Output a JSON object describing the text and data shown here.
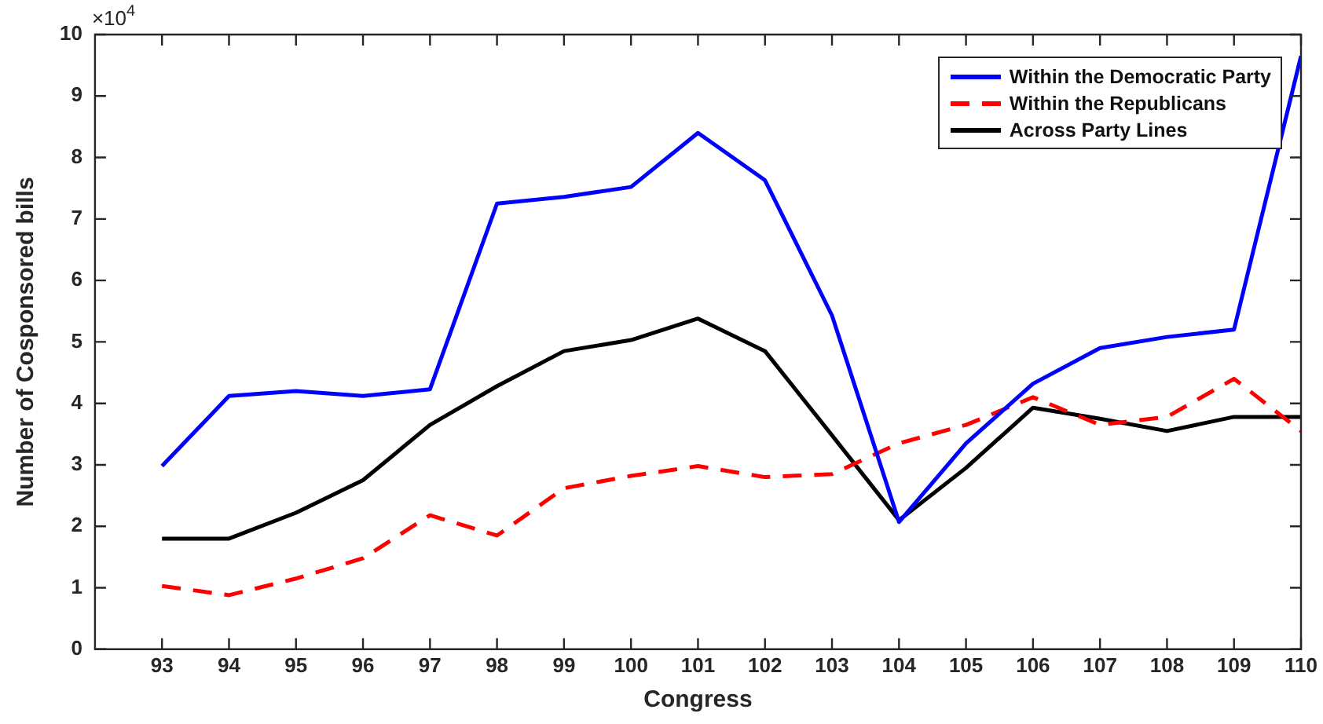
{
  "chart_data": {
    "type": "line",
    "xlabel": "Congress",
    "ylabel": "Number of Cosponsored bills",
    "annotations": [
      "×10$^{4}$"
    ],
    "x": [
      93,
      94,
      95,
      96,
      97,
      98,
      99,
      100,
      101,
      102,
      103,
      104,
      105,
      106,
      107,
      108,
      109,
      110
    ],
    "xlim": [
      92,
      110
    ],
    "xticks": [
      93,
      94,
      95,
      96,
      97,
      98,
      99,
      100,
      101,
      102,
      103,
      104,
      105,
      106,
      107,
      108,
      109,
      110
    ],
    "ylim": [
      0,
      10
    ],
    "yticks": [
      0,
      1,
      2,
      3,
      4,
      5,
      6,
      7,
      8,
      9,
      10
    ],
    "grid": false,
    "legend": "top right",
    "marker": "none",
    "line_style": "solid",
    "series": [
      {
        "name": "Within the Democratic Party",
        "color": "#0000ff",
        "values": [
          2.98,
          4.12,
          4.2,
          4.12,
          4.23,
          7.25,
          7.36,
          7.52,
          8.4,
          7.63,
          5.43,
          2.07,
          3.35,
          4.32,
          4.9,
          5.08,
          5.2,
          9.65
        ]
      },
      {
        "name": "Within the Republicans",
        "color": "#ff0000",
        "line_style": "dashed",
        "values": [
          1.03,
          0.88,
          1.15,
          1.48,
          2.18,
          1.85,
          2.62,
          2.82,
          2.98,
          2.8,
          2.85,
          3.35,
          3.65,
          4.1,
          3.65,
          3.78,
          4.4,
          3.55
        ]
      },
      {
        "name": "Across Party Lines",
        "color": "#000000",
        "values": [
          1.8,
          1.8,
          2.22,
          2.75,
          3.65,
          4.28,
          4.85,
          5.03,
          5.38,
          4.85,
          3.48,
          2.1,
          2.95,
          3.93,
          3.75,
          3.55,
          3.78,
          3.78
        ]
      }
    ]
  }
}
